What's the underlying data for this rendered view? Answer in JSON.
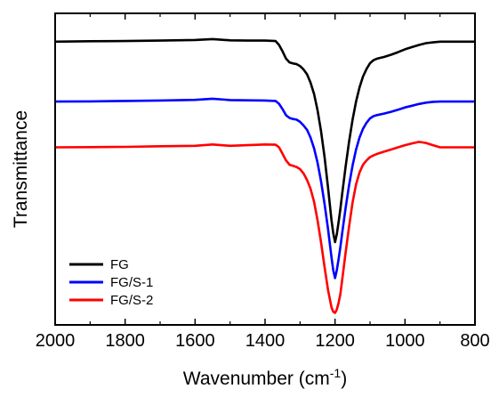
{
  "chart_data": {
    "type": "line",
    "title": "",
    "xlabel": "Wavenumber (cm",
    "xlabel_sup": "-1",
    "xlabel_close": ")",
    "ylabel": "Transmittance",
    "xlim": [
      2000,
      800
    ],
    "x_reversed": true,
    "ylim": [
      -13,
      1.3
    ],
    "y_tick_labels_shown": false,
    "x_ticks": [
      2000,
      1800,
      1600,
      1400,
      1200,
      1000,
      800
    ],
    "x_tick_labels": [
      "2000",
      "1800",
      "1600",
      "1400",
      "1200",
      "1000",
      "800"
    ],
    "grid": false,
    "legend": {
      "placement": "bottom-left"
    },
    "series": [
      {
        "name": "FG",
        "color": "#000000",
        "x": [
          2000,
          1900,
          1800,
          1700,
          1600,
          1550,
          1500,
          1450,
          1400,
          1370,
          1360,
          1350,
          1340,
          1330,
          1320,
          1310,
          1300,
          1290,
          1280,
          1270,
          1260,
          1250,
          1240,
          1230,
          1220,
          1210,
          1205,
          1200,
          1195,
          1190,
          1185,
          1180,
          1175,
          1170,
          1160,
          1150,
          1140,
          1130,
          1120,
          1110,
          1100,
          1090,
          1080,
          1060,
          1040,
          1020,
          1000,
          980,
          960,
          940,
          920,
          900,
          850,
          800
        ],
        "y": [
          0,
          0.02,
          0.03,
          0.05,
          0.08,
          0.12,
          0.06,
          0.05,
          0.05,
          0.03,
          -0.15,
          -0.45,
          -0.78,
          -0.95,
          -1.0,
          -1.03,
          -1.12,
          -1.28,
          -1.5,
          -1.88,
          -2.4,
          -3.15,
          -4.1,
          -5.3,
          -6.7,
          -8.2,
          -8.8,
          -9.2,
          -8.85,
          -8.3,
          -7.7,
          -7.05,
          -6.4,
          -5.75,
          -4.6,
          -3.6,
          -2.75,
          -2.1,
          -1.6,
          -1.25,
          -0.99,
          -0.85,
          -0.78,
          -0.7,
          -0.6,
          -0.48,
          -0.35,
          -0.25,
          -0.15,
          -0.07,
          -0.03,
          0,
          0,
          0
        ]
      },
      {
        "name": "FG/S-1",
        "color": "#0000ff",
        "x": [
          2000,
          1900,
          1800,
          1700,
          1600,
          1550,
          1500,
          1450,
          1400,
          1370,
          1360,
          1350,
          1340,
          1330,
          1320,
          1310,
          1300,
          1290,
          1280,
          1270,
          1260,
          1250,
          1240,
          1230,
          1220,
          1210,
          1205,
          1200,
          1195,
          1190,
          1185,
          1180,
          1175,
          1170,
          1160,
          1150,
          1140,
          1130,
          1120,
          1110,
          1100,
          1090,
          1080,
          1060,
          1040,
          1020,
          1000,
          980,
          960,
          940,
          920,
          900,
          850,
          800
        ],
        "y": [
          -2.75,
          -2.74,
          -2.72,
          -2.7,
          -2.67,
          -2.62,
          -2.68,
          -2.69,
          -2.7,
          -2.72,
          -2.85,
          -3.1,
          -3.38,
          -3.5,
          -3.55,
          -3.58,
          -3.68,
          -3.85,
          -4.05,
          -4.4,
          -4.9,
          -5.55,
          -6.4,
          -7.45,
          -8.6,
          -9.9,
          -10.5,
          -10.85,
          -10.5,
          -10.0,
          -9.45,
          -8.85,
          -8.25,
          -7.65,
          -6.6,
          -5.7,
          -4.95,
          -4.4,
          -4.0,
          -3.72,
          -3.52,
          -3.42,
          -3.37,
          -3.3,
          -3.22,
          -3.12,
          -3.02,
          -2.94,
          -2.86,
          -2.8,
          -2.76,
          -2.75,
          -2.75,
          -2.75
        ]
      },
      {
        "name": "FG/S-2",
        "color": "#ff0000",
        "x": [
          2000,
          1900,
          1800,
          1700,
          1600,
          1550,
          1500,
          1450,
          1400,
          1370,
          1360,
          1350,
          1340,
          1330,
          1320,
          1310,
          1300,
          1290,
          1280,
          1270,
          1260,
          1250,
          1240,
          1230,
          1220,
          1210,
          1205,
          1200,
          1195,
          1190,
          1185,
          1180,
          1175,
          1170,
          1160,
          1150,
          1140,
          1130,
          1120,
          1110,
          1100,
          1090,
          1080,
          1060,
          1040,
          1020,
          1000,
          980,
          960,
          940,
          920,
          900,
          850,
          800
        ],
        "y": [
          -4.85,
          -4.84,
          -4.83,
          -4.8,
          -4.78,
          -4.72,
          -4.78,
          -4.75,
          -4.72,
          -4.73,
          -4.85,
          -5.15,
          -5.45,
          -5.65,
          -5.7,
          -5.75,
          -5.85,
          -6.05,
          -6.35,
          -6.75,
          -7.35,
          -8.2,
          -9.2,
          -10.35,
          -11.4,
          -12.2,
          -12.4,
          -12.45,
          -12.3,
          -12.0,
          -11.6,
          -11.0,
          -10.35,
          -9.7,
          -8.5,
          -7.4,
          -6.55,
          -6.0,
          -5.65,
          -5.45,
          -5.3,
          -5.22,
          -5.15,
          -5.05,
          -4.95,
          -4.85,
          -4.75,
          -4.67,
          -4.6,
          -4.65,
          -4.75,
          -4.85,
          -4.85,
          -4.85
        ]
      }
    ]
  }
}
